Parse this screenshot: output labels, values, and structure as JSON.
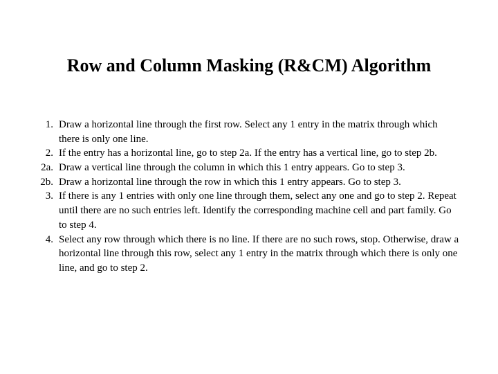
{
  "title": "Row and Column Masking (R&CM) Algorithm",
  "steps": [
    {
      "num": "1.",
      "text": "Draw a horizontal line through the first row.  Select any 1 entry in the matrix through which there is only one line."
    },
    {
      "num": "2.",
      "text": "If the entry has a horizontal line, go to step 2a. If the entry has a vertical line, go to step 2b."
    },
    {
      "num": "2a.",
      "text": "Draw a vertical line through the column in which this 1 entry appears. Go to step 3."
    },
    {
      "num": "2b.",
      "text": "Draw a horizontal line through the row in which this 1 entry appears. Go to step 3."
    },
    {
      "num": "3.",
      "text": "If there is any 1 entries with only one line through them, select any one and go to step 2. Repeat until there are no such entries left. Identify the corresponding machine cell and part family. Go to step 4."
    },
    {
      "num": "4.",
      "text": "Select any row through which there is no line. If there are no such rows, stop. Otherwise, draw a horizontal line through this row, select any 1 entry in the matrix through which there is only one line, and go to step 2."
    }
  ],
  "style": {
    "background_color": "#ffffff",
    "text_color": "#000000",
    "title_fontsize": 26,
    "body_fontsize": 15,
    "font_family": "Times New Roman"
  }
}
